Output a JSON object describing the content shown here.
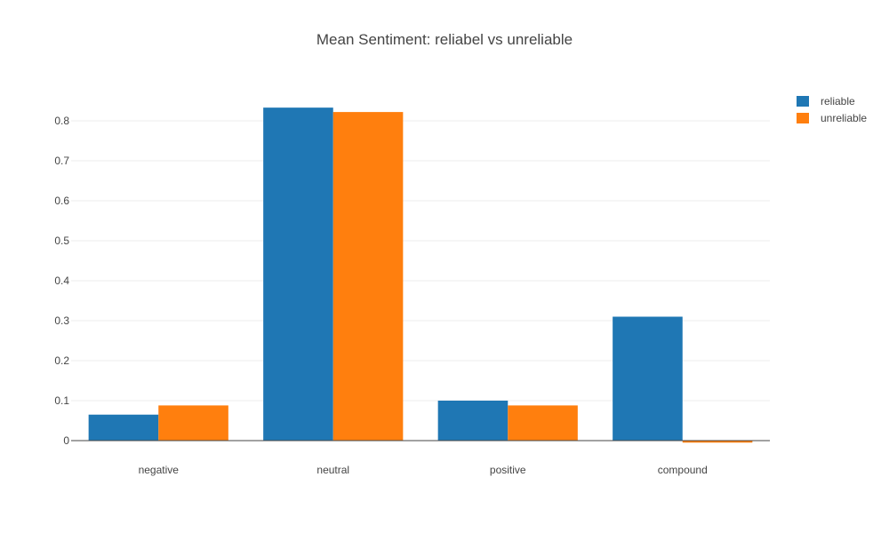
{
  "chart_data": {
    "type": "bar",
    "title": "Mean Sentiment: reliabel vs unreliable",
    "categories": [
      "negative",
      "neutral",
      "positive",
      "compound"
    ],
    "series": [
      {
        "name": "reliable",
        "color": "#1f77b4",
        "values": [
          0.065,
          0.833,
          0.1,
          0.31
        ]
      },
      {
        "name": "unreliable",
        "color": "#ff7f0e",
        "values": [
          0.088,
          0.822,
          0.088,
          -0.005
        ]
      }
    ],
    "ylim": [
      -0.005,
      0.85
    ],
    "yticks": [
      0,
      0.1,
      0.2,
      0.3,
      0.4,
      0.5,
      0.6,
      0.7,
      0.8
    ],
    "ytick_labels": [
      "0",
      "0.1",
      "0.2",
      "0.3",
      "0.4",
      "0.5",
      "0.6",
      "0.7",
      "0.8"
    ],
    "grid": true,
    "legend_position": "top-right"
  }
}
